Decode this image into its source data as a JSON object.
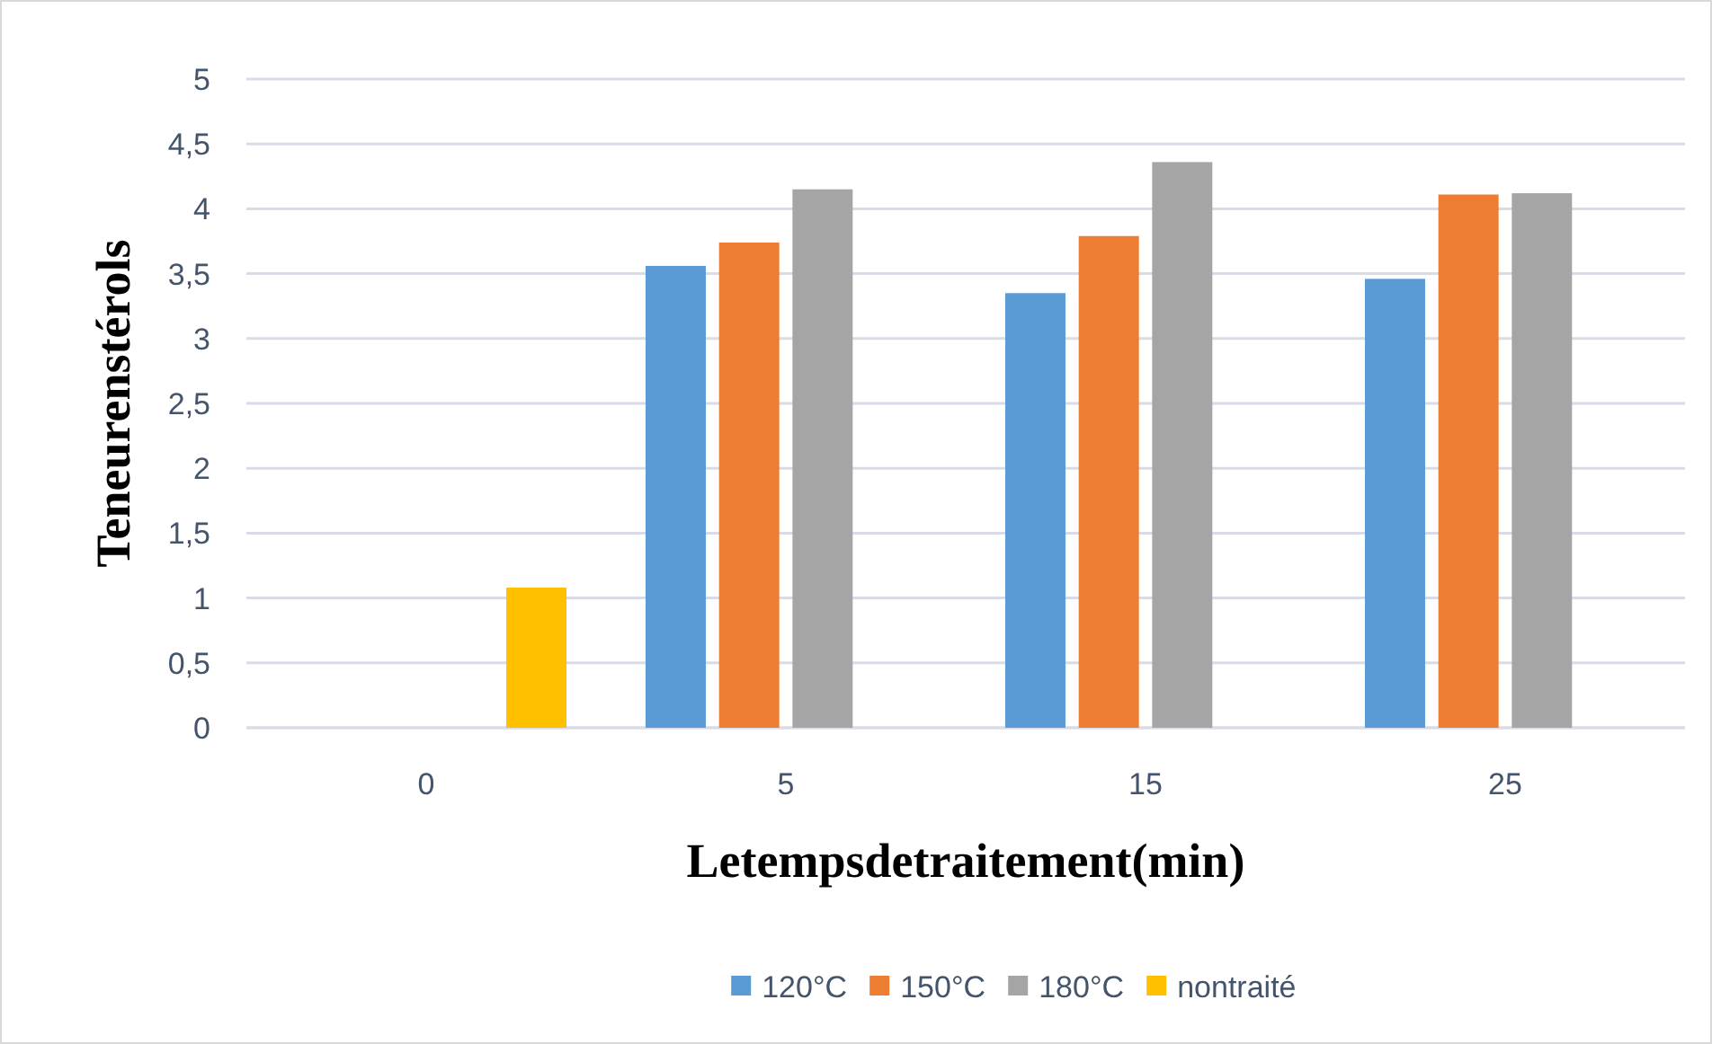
{
  "chart_data": {
    "type": "bar",
    "xlabel": "Letempsdetraitement(min)",
    "ylabel": "Teneurenstérols",
    "categories": [
      "0",
      "5",
      "15",
      "25"
    ],
    "series": [
      {
        "name": "120°C",
        "color": "#5b9bd5",
        "values": [
          null,
          3.56,
          3.35,
          3.46
        ]
      },
      {
        "name": "150°C",
        "color": "#ed7d31",
        "values": [
          null,
          3.74,
          3.79,
          4.11
        ]
      },
      {
        "name": "180°C",
        "color": "#a5a5a5",
        "values": [
          null,
          4.15,
          4.36,
          4.12
        ]
      },
      {
        "name": "nontraité",
        "color": "#ffc000",
        "values": [
          1.08,
          null,
          null,
          null
        ]
      }
    ],
    "ylim": [
      0,
      5
    ],
    "yticks": [
      {
        "value": 0,
        "label": "0"
      },
      {
        "value": 0.5,
        "label": "0,5"
      },
      {
        "value": 1,
        "label": "1"
      },
      {
        "value": 1.5,
        "label": "1,5"
      },
      {
        "value": 2,
        "label": "2"
      },
      {
        "value": 2.5,
        "label": "2,5"
      },
      {
        "value": 3,
        "label": "3"
      },
      {
        "value": 3.5,
        "label": "3,5"
      },
      {
        "value": 4,
        "label": "4"
      },
      {
        "value": 4.5,
        "label": "4,5"
      },
      {
        "value": 5,
        "label": "5"
      }
    ],
    "grid": "y",
    "legend": "bottom"
  }
}
